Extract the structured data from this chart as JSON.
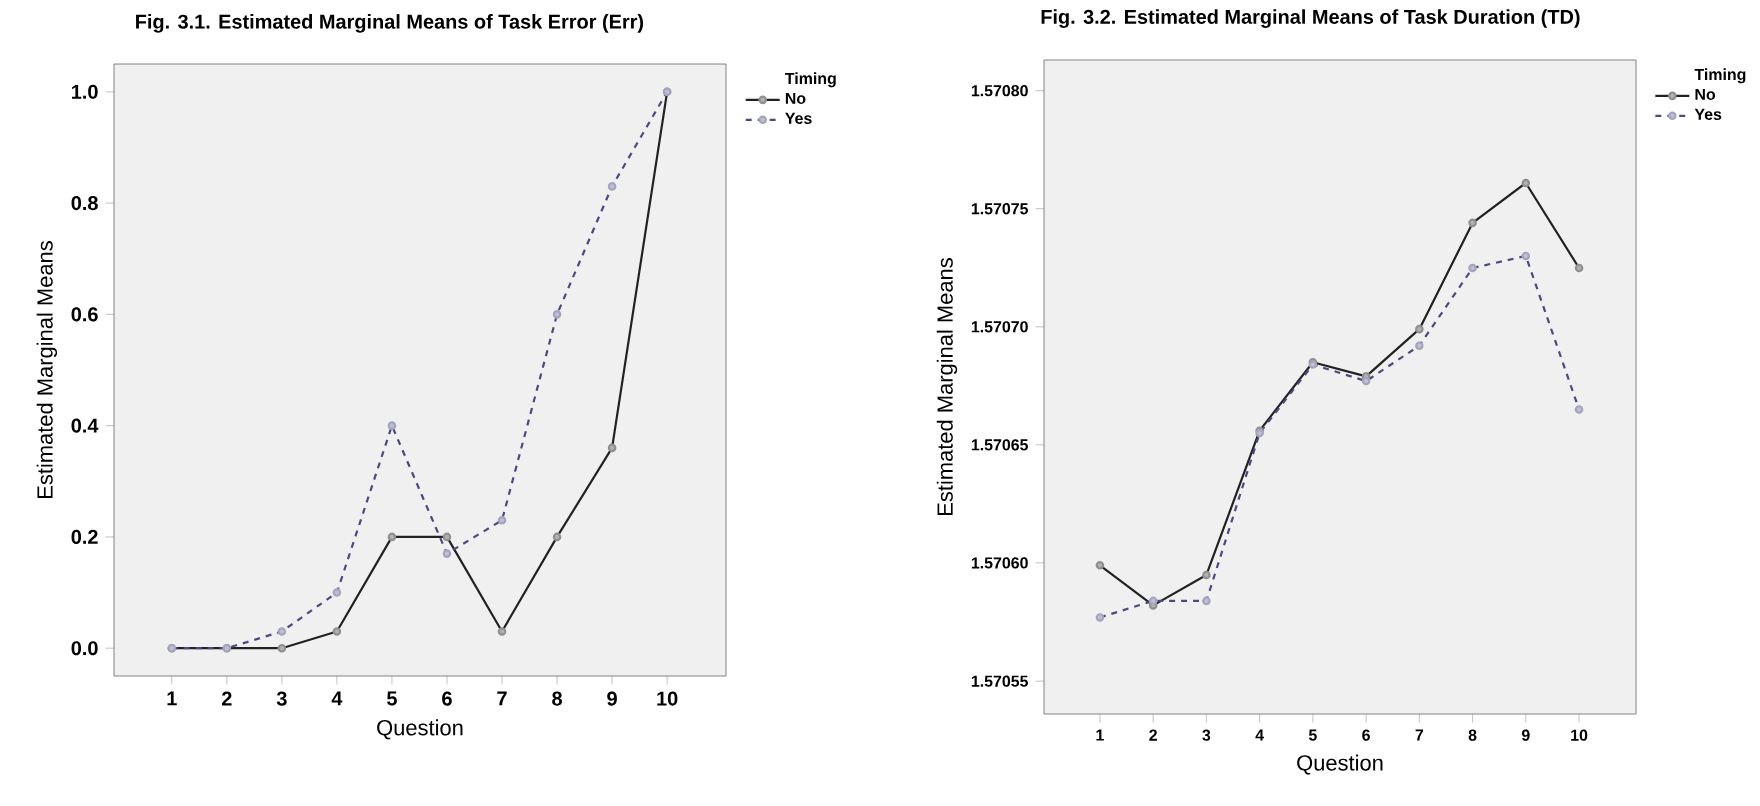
{
  "chart_data": [
    {
      "type": "line",
      "title": "Fig. 3.1.   Estimated Marginal Means of Task Error (Err)",
      "xlabel": "Question",
      "ylabel": "Estimated Marginal Means",
      "legend_title": "Timing",
      "legend": "right",
      "marker": "circle",
      "grid": false,
      "categories": [
        "1",
        "2",
        "3",
        "4",
        "5",
        "6",
        "7",
        "8",
        "9",
        "10"
      ],
      "series": [
        {
          "name": "No",
          "color": "#222222",
          "line_style": "solid",
          "values": [
            0,
            0,
            0,
            0.03,
            0.2,
            0.2,
            0.03,
            0.2,
            0.36,
            1.0
          ]
        },
        {
          "name": "Yes",
          "color": "#4a4a80",
          "line_style": "dashed",
          "values": [
            0,
            0,
            0.03,
            0.1,
            0.4,
            0.17,
            0.23,
            0.6,
            0.83,
            1.0
          ]
        }
      ],
      "ylim": [
        -0.05,
        1.05
      ],
      "yticks": [
        {
          "value": 0,
          "label": "0.0"
        },
        0.2,
        0.4,
        0.6,
        0.8,
        {
          "value": 1,
          "label": "1.0"
        }
      ]
    },
    {
      "type": "line",
      "title": "Fig. 3.2.   Estimated Marginal Means of Task Duration (TD)",
      "xlabel": "Question",
      "ylabel": "Estimated Marginal Means",
      "legend_title": "Timing",
      "legend": "right",
      "marker": "circle",
      "grid": false,
      "categories": [
        "1",
        "2",
        "3",
        "4",
        "5",
        "6",
        "7",
        "8",
        "9",
        "10"
      ],
      "series": [
        {
          "name": "No",
          "color": "#222222",
          "line_style": "solid",
          "values": [
            1.570599,
            1.570582,
            1.570595,
            1.570656,
            1.570685,
            1.570679,
            1.570699,
            1.570744,
            1.570761,
            1.570725
          ]
        },
        {
          "name": "Yes",
          "color": "#4a4a80",
          "line_style": "dashed",
          "values": [
            1.570577,
            1.570584,
            1.570584,
            1.570655,
            1.570684,
            1.570677,
            1.570692,
            1.570725,
            1.57073,
            1.570665
          ]
        }
      ],
      "ylim": [
        1.570536,
        1.570813
      ],
      "yticks": [
        {
          "value": 1.57055,
          "label": "1.57055"
        },
        {
          "value": 1.5706,
          "label": "1.57060"
        },
        {
          "value": 1.57065,
          "label": "1.57065"
        },
        {
          "value": 1.5707,
          "label": "1.57070"
        },
        {
          "value": 1.57075,
          "label": "1.57075"
        },
        {
          "value": 1.5708,
          "label": "1.57080"
        }
      ]
    }
  ]
}
